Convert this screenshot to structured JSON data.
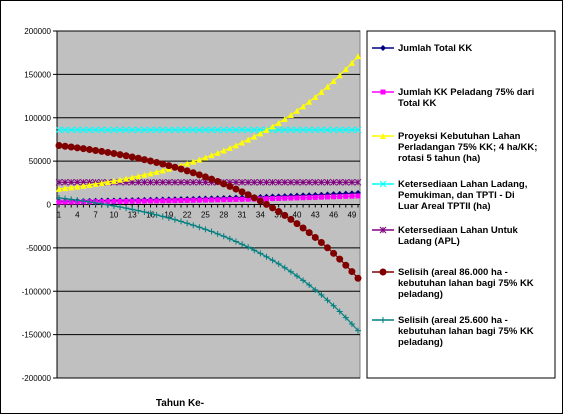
{
  "chart_data": {
    "type": "line",
    "title": "",
    "xlabel": "Tahun Ke-",
    "ylabel": "",
    "ylim": [
      -200000,
      200000
    ],
    "yticks": [
      200000,
      150000,
      100000,
      50000,
      0,
      -50000,
      -100000,
      -150000,
      -200000
    ],
    "xtick_labels": [
      "1",
      "4",
      "7",
      "10",
      "13",
      "16",
      "19",
      "22",
      "25",
      "28",
      "31",
      "34",
      "37",
      "40",
      "43",
      "46",
      "49"
    ],
    "x": [
      1,
      50
    ],
    "grid": true,
    "legend_position": "right",
    "series": [
      {
        "name": "Jumlah Total KK",
        "color": "#000080",
        "marker": "diamond",
        "start": 3700,
        "end": 13200,
        "growth": "exponential"
      },
      {
        "name": "Jumlah KK Peladang  75% dari Total KK",
        "color": "#FF00FF",
        "marker": "square",
        "start": 2700,
        "end": 9900,
        "growth": "exponential"
      },
      {
        "name": "Proyeksi Kebutuhan Lahan Perladangan 75% KK; 4 ha/KK; rotasi 5 tahun (ha)",
        "color": "#FFFF00",
        "marker": "triangle",
        "start": 18000,
        "end": 171000,
        "growth": "exponential"
      },
      {
        "name": "Ketersediaan Lahan Ladang, Pemukiman, dan TPTI - Di Luar Areal TPTII (ha)",
        "color": "#00FFFF",
        "marker": "x",
        "start": 86000,
        "end": 86000,
        "growth": "constant"
      },
      {
        "name": "Ketersediaan Lahan Untuk Ladang (APL)",
        "color": "#800080",
        "marker": "star",
        "start": 25600,
        "end": 25600,
        "growth": "constant"
      },
      {
        "name": "Selisih (areal 86.000 ha - kebutuhan lahan bagi 75% KK peladang)",
        "color": "#800000",
        "marker": "circle",
        "base": 86000,
        "growth": "difference"
      },
      {
        "name": "Selisih (areal 25.600 ha - kebutuhan lahan bagi 75% KK peladang)",
        "color": "#008080",
        "marker": "plus",
        "base": 25600,
        "growth": "difference"
      }
    ]
  }
}
